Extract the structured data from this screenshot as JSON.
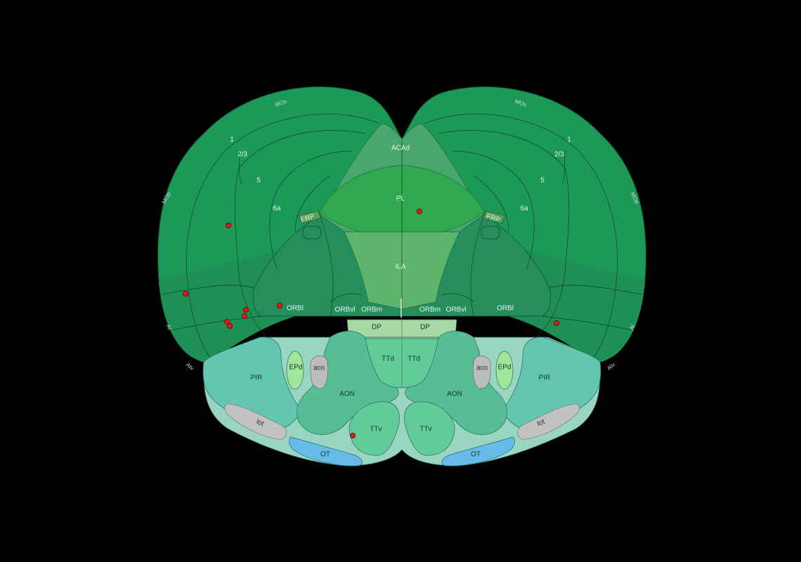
{
  "colors": {
    "background": "#000000",
    "cortex": "#1c9957",
    "cortex_lower": "#1e8f55",
    "acad": "#49a66c",
    "pl": "#2fa84f",
    "ila": "#5db56c",
    "orb": "#268e5c",
    "olfactory": "#62c6b1",
    "aon": "#56bd96",
    "ttd": "#61cb9a",
    "dp": "#a6d9a4",
    "epd": "#a1e59c",
    "fiber": "#bdbdbd",
    "ot": "#66bbea",
    "marker": "#e01818"
  },
  "labels": {
    "acad": "ACAd",
    "pl": "PL",
    "ila": "ILA",
    "frp_left": "FRP",
    "frp_right": "FRP",
    "layer1_left": "1",
    "layer23_left": "2/3",
    "layer5_left": "5",
    "layer6a_left": "6a",
    "layer1_right": "1",
    "layer23_right": "2/3",
    "layer5_right": "5",
    "layer6a_right": "6a",
    "orbl_left": "ORBl",
    "orbvl_left": "ORBvl",
    "orbm_left": "ORBm",
    "orbm_right": "ORBm",
    "orbvl_right": "ORBvl",
    "orbl_right": "ORBl",
    "dp_left": "DP",
    "dp_right": "DP",
    "ttd_left": "TTd",
    "ttd_right": "TTd",
    "ttv_left": "TTv",
    "ttv_right": "TTv",
    "aon_left": "AON",
    "aon_right": "AON",
    "pir_left": "PIR",
    "pir_right": "PIR",
    "epd_left": "EPd",
    "epd_right": "EPd",
    "aco_left": "aco",
    "aco_right": "aco",
    "lot_left": "lot",
    "lot_right": "lot",
    "ot_left": "OT",
    "ot_right": "OT",
    "edge_mos_left": "MOs",
    "edge_mop_left": "MOp",
    "edge_ai_left": "AI",
    "edge_aiv_left": "AIv",
    "edge_mos_right": "MOs",
    "edge_mop_right": "MOp",
    "edge_ai_right": "AI",
    "edge_aiv_right": "AIv"
  }
}
